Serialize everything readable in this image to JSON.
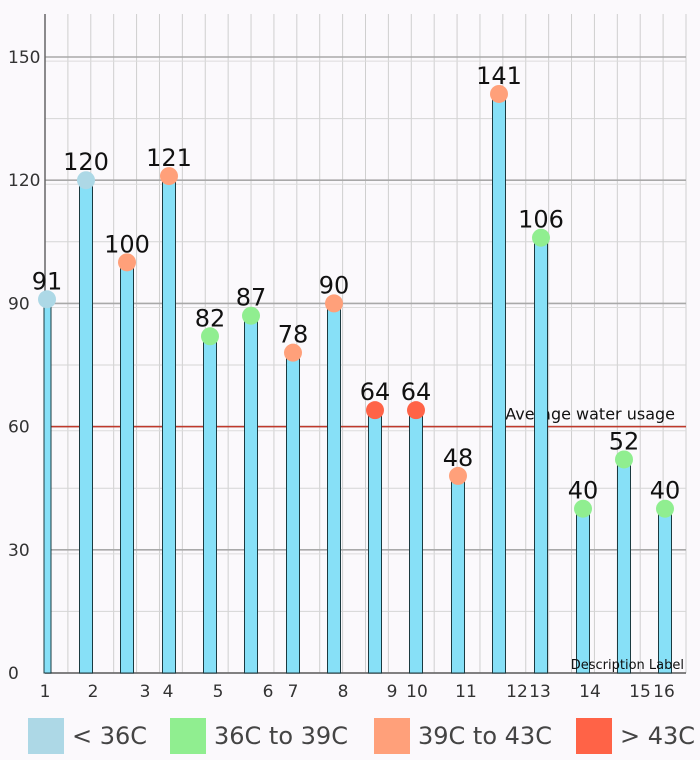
{
  "chart_data": {
    "type": "bar",
    "title": "",
    "xlabel": "",
    "ylabel": "",
    "categories": [
      "1",
      "2",
      "3",
      "4",
      "5",
      "6",
      "7",
      "8",
      "9",
      "10",
      "11",
      "12",
      "13",
      "14",
      "15",
      "16"
    ],
    "values": [
      91,
      120,
      100,
      121,
      82,
      87,
      78,
      90,
      64,
      64,
      48,
      141,
      106,
      40,
      52,
      40
    ],
    "marker_categories": [
      "< 36C",
      "< 36C",
      "39C to 43C",
      "39C to 43C",
      "36C to 39C",
      "36C to 39C",
      "39C to 43C",
      "39C to 43C",
      "> 43C",
      "> 43C",
      "39C to 43C",
      "39C to 43C",
      "36C to 39C",
      "36C to 39C",
      "36C to 39C",
      "36C to 39C"
    ],
    "ylim": [
      0,
      150
    ],
    "yticks": [
      0,
      30,
      60,
      90,
      120,
      150
    ],
    "grid": true,
    "average_line": {
      "value": 60,
      "label": "Average water usage",
      "color": "#c0392b"
    },
    "description_label": "Description Label",
    "bar_color": "#87e0f7",
    "legend": {
      "position": "bottom",
      "entries": [
        {
          "label": "< 36C",
          "color": "#add8e6"
        },
        {
          "label": "36C to 39C",
          "color": "#90ee90"
        },
        {
          "label": "39C to 43C",
          "color": "#ffa07a"
        },
        {
          "label": "> 43C",
          "color": "#ff6347"
        }
      ]
    }
  }
}
